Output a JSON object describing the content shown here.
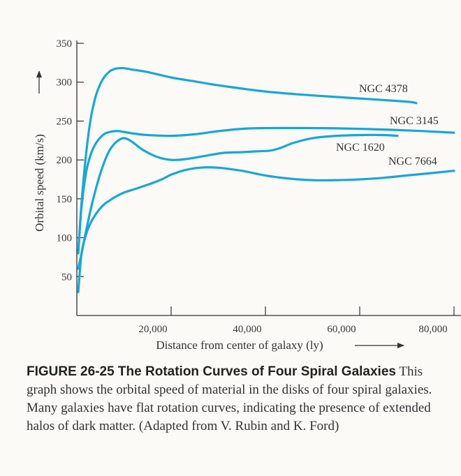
{
  "chart_data": {
    "type": "line",
    "xlabel": "Distance from center of galaxy (ly)",
    "ylabel": "Orbital speed (km/s)",
    "xlim": [
      0,
      80000
    ],
    "ylim": [
      0,
      350
    ],
    "x_ticks": [
      20000,
      40000,
      60000,
      80000
    ],
    "x_tick_labels": [
      "20,000",
      "40,000",
      "60,000",
      "80,000"
    ],
    "y_ticks": [
      50,
      100,
      150,
      200,
      250,
      300,
      350
    ],
    "y_tick_labels": [
      "50",
      "100",
      "150",
      "200",
      "250",
      "300",
      "350"
    ],
    "grid": false,
    "line_color": "#1aa6d8",
    "series": [
      {
        "name": "NGC 4378",
        "x": [
          300,
          1000,
          2000,
          3000,
          4000,
          5000,
          6000,
          7000,
          8000,
          9000,
          10000,
          12000,
          15000,
          20000,
          25000,
          30000,
          40000,
          50000,
          60000,
          70000,
          72000
        ],
        "y": [
          80,
          145,
          210,
          255,
          282,
          298,
          308,
          314,
          317,
          318,
          318,
          316,
          313,
          306,
          301,
          296,
          288,
          283,
          279,
          275,
          273
        ]
      },
      {
        "name": "NGC 3145",
        "x": [
          300,
          1000,
          2000,
          3000,
          4000,
          5000,
          6000,
          7000,
          8000,
          9000,
          10000,
          12000,
          15000,
          20000,
          25000,
          30000,
          35000,
          40000,
          50000,
          60000,
          70000,
          80000
        ],
        "y": [
          80,
          140,
          185,
          208,
          221,
          229,
          234,
          236,
          237,
          237,
          236,
          234,
          232,
          231,
          233,
          237,
          240,
          241,
          241,
          240,
          238,
          235
        ]
      },
      {
        "name": "NGC 1620",
        "x": [
          300,
          1000,
          2000,
          3000,
          4000,
          5000,
          6000,
          7000,
          8000,
          9000,
          10000,
          11000,
          12000,
          14000,
          17000,
          20000,
          23000,
          27000,
          31000,
          35000,
          38000,
          41000,
          43000,
          46000,
          50000,
          55000,
          60000,
          65000,
          68000
        ],
        "y": [
          60,
          80,
          110,
          138,
          162,
          183,
          200,
          213,
          221,
          226,
          228,
          226,
          222,
          213,
          204,
          200,
          201,
          205,
          209,
          210,
          211,
          212,
          215,
          222,
          228,
          231,
          232,
          232,
          231
        ]
      },
      {
        "name": "NGC 7664",
        "x": [
          300,
          1000,
          2000,
          3000,
          4000,
          5000,
          6000,
          7000,
          8000,
          10000,
          12000,
          15000,
          18000,
          20000,
          23000,
          26000,
          30000,
          35000,
          40000,
          45000,
          50000,
          55000,
          60000,
          65000,
          70000,
          75000,
          80000
        ],
        "y": [
          30,
          80,
          105,
          120,
          130,
          138,
          144,
          148,
          152,
          158,
          162,
          168,
          175,
          181,
          187,
          190,
          190,
          186,
          180,
          176,
          174,
          174,
          175,
          177,
          180,
          183,
          186
        ]
      }
    ]
  },
  "caption": {
    "figure_title": "FIGURE 26-25  The Rotation Curves of Four Spiral Galaxies",
    "text": " This graph shows the orbital speed of material in the disks of four spiral galaxies. Many galaxies have flat rotation curves, indicating the presence of extended halos of dark matter. (Adapted from V. Rubin and K. Ford)"
  }
}
